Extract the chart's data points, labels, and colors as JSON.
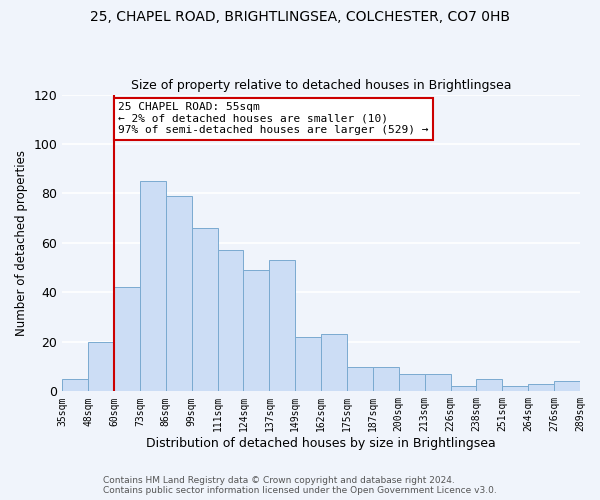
{
  "title_line1": "25, CHAPEL ROAD, BRIGHTLINGSEA, COLCHESTER, CO7 0HB",
  "title_line2": "Size of property relative to detached houses in Brightlingsea",
  "xlabel": "Distribution of detached houses by size in Brightlingsea",
  "ylabel": "Number of detached properties",
  "bar_labels": [
    "35sqm",
    "48sqm",
    "60sqm",
    "73sqm",
    "86sqm",
    "99sqm",
    "111sqm",
    "124sqm",
    "137sqm",
    "149sqm",
    "162sqm",
    "175sqm",
    "187sqm",
    "200sqm",
    "213sqm",
    "226sqm",
    "238sqm",
    "251sqm",
    "264sqm",
    "276sqm",
    "289sqm"
  ],
  "bar_values": [
    5,
    20,
    42,
    85,
    79,
    66,
    57,
    49,
    53,
    22,
    23,
    10,
    10,
    7,
    7,
    2,
    5,
    2,
    3,
    4
  ],
  "bar_color": "#ccddf5",
  "bar_edge_color": "#7aaad0",
  "marker_index": 2,
  "annotation_title": "25 CHAPEL ROAD: 55sqm",
  "annotation_line1": "← 2% of detached houses are smaller (10)",
  "annotation_line2": "97% of semi-detached houses are larger (529) →",
  "vline_color": "#cc0000",
  "ylim": [
    0,
    120
  ],
  "yticks": [
    0,
    20,
    40,
    60,
    80,
    100,
    120
  ],
  "footer_line1": "Contains HM Land Registry data © Crown copyright and database right 2024.",
  "footer_line2": "Contains public sector information licensed under the Open Government Licence v3.0.",
  "background_color": "#f0f4fb",
  "grid_color": "#ffffff"
}
